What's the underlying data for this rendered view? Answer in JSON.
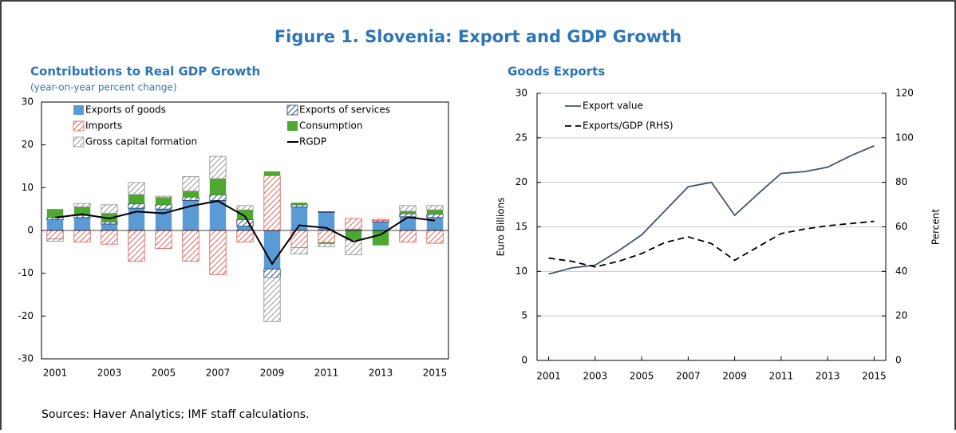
{
  "title": "Figure 1. Slovenia: Export and GDP Growth",
  "source": "Sources: Haver Analytics; IMF staff calculations.",
  "chart_data": [
    {
      "type": "bar",
      "stacked": true,
      "title": "Contributions to Real GDP Growth",
      "subtitle": "(year-on-year percent change)",
      "categories": [
        "2001",
        null,
        "2003",
        null,
        "2005",
        null,
        "2007",
        null,
        "2009",
        null,
        "2011",
        null,
        "2013",
        null,
        "2015"
      ],
      "series": [
        {
          "name": "Exports of goods",
          "color": "#5B9BD5",
          "values": [
            2.5,
            3,
            1.5,
            5.2,
            5,
            7,
            7,
            1,
            -9,
            5.5,
            4.2,
            0.3,
            2,
            3.2,
            3
          ]
        },
        {
          "name": "Exports of services",
          "color": "#1F3864",
          "hatch": true,
          "values": [
            0.5,
            0.5,
            0.5,
            1,
            1,
            0.8,
            1.3,
            1.5,
            -2,
            0.5,
            0.2,
            0,
            0.3,
            0.7,
            0.8
          ]
        },
        {
          "name": "Imports",
          "color": "#E0524A",
          "hatch": true,
          "values": [
            -2,
            -2.7,
            -3.2,
            -7.2,
            -4.2,
            -7.2,
            -10.3,
            -2.7,
            12.8,
            -4,
            -2.8,
            2.5,
            0.3,
            -2.7,
            -3
          ]
        },
        {
          "name": "Consumption",
          "color": "#4EA72E",
          "values": [
            2,
            2,
            2,
            2.2,
            1.7,
            1.4,
            3.8,
            2.3,
            1,
            0.5,
            -0.3,
            -2.2,
            -3.5,
            0.6,
            1
          ]
        },
        {
          "name": "Gross capital formation",
          "color": "#8C8C8C",
          "hatch": true,
          "values": [
            -0.5,
            0.8,
            2,
            2.8,
            0.3,
            3.4,
            5.2,
            1,
            -10.3,
            -1.5,
            -0.7,
            -3.5,
            0,
            1.3,
            1
          ]
        },
        {
          "name": "RGDP",
          "color": "#000000",
          "type": "line",
          "values": [
            3,
            3.8,
            2.8,
            4.4,
            4,
            5.7,
            6.9,
            3.3,
            -7.8,
            1.2,
            0.6,
            -2.6,
            -1,
            3.1,
            2.3
          ]
        }
      ],
      "ylim": [
        -30,
        30
      ],
      "yticks": [
        -30,
        -20,
        -10,
        0,
        10,
        20,
        30
      ],
      "grid": false,
      "legend": "upper"
    },
    {
      "type": "line",
      "title": "Goods Exports",
      "x": [
        2001,
        2002,
        2003,
        2004,
        2005,
        2006,
        2007,
        2008,
        2009,
        2010,
        2011,
        2012,
        2013,
        2014,
        2015
      ],
      "xlim": [
        2000.5,
        2015.5
      ],
      "xticks": [
        2001,
        2003,
        2005,
        2007,
        2009,
        2011,
        2013,
        2015
      ],
      "series": [
        {
          "name": "Export value",
          "color": "#44546A",
          "values": [
            9.7,
            10.4,
            10.7,
            12.3,
            14.1,
            16.8,
            19.5,
            20,
            16.3,
            18.7,
            21,
            21.2,
            21.7,
            23,
            24.1
          ]
        },
        {
          "name": "Exports/GDP (RHS)",
          "color": "#000000",
          "dash": true,
          "axis": "y2",
          "values": [
            46,
            44.5,
            42,
            44.5,
            48,
            53,
            55.5,
            52.5,
            45,
            51,
            57,
            59,
            60.5,
            61.5,
            62.5
          ]
        }
      ],
      "ylabel": "Euro Billions",
      "y2label": "Percent",
      "ylim": [
        0,
        30
      ],
      "yticks": [
        0,
        5,
        10,
        15,
        20,
        25,
        30
      ],
      "y2lim": [
        0,
        120
      ],
      "y2ticks": [
        0,
        20,
        40,
        60,
        80,
        100,
        120
      ],
      "grid": true,
      "legend": "upper left"
    }
  ]
}
